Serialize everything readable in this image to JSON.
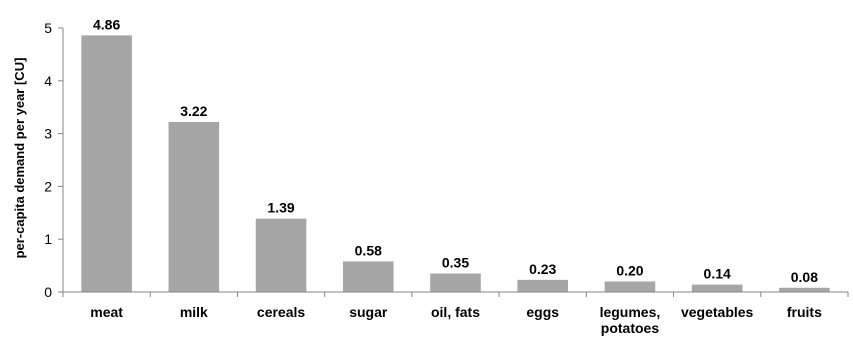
{
  "chart_data": {
    "type": "bar",
    "title": "",
    "xlabel": "",
    "ylabel": "per-capita demand per year [CU]",
    "ylim": [
      0,
      5
    ],
    "yticks": [
      0,
      1,
      2,
      3,
      4,
      5
    ],
    "grid": false,
    "legend": "none",
    "bar_color": "#a6a6a6",
    "categories": [
      [
        "meat"
      ],
      [
        "milk"
      ],
      [
        "cereals"
      ],
      [
        "sugar"
      ],
      [
        "oil, fats"
      ],
      [
        "eggs"
      ],
      [
        "legumes,",
        "potatoes"
      ],
      [
        "vegetables"
      ],
      [
        "fruits"
      ]
    ],
    "values": [
      4.86,
      3.22,
      1.39,
      0.58,
      0.35,
      0.23,
      0.2,
      0.14,
      0.08
    ],
    "value_labels": [
      "4.86",
      "3.22",
      "1.39",
      "0.58",
      "0.35",
      "0.23",
      "0.20",
      "0.14",
      "0.08"
    ]
  }
}
